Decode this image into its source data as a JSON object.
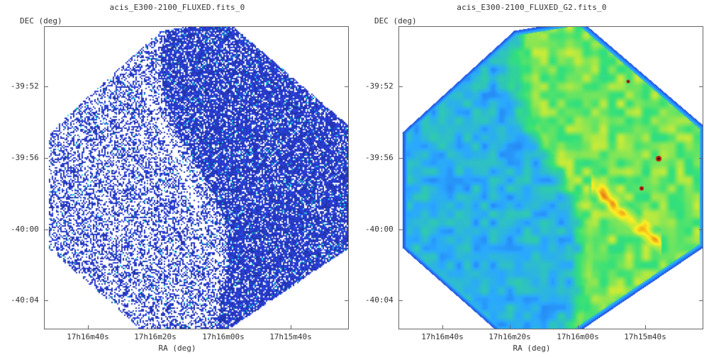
{
  "panels": [
    {
      "title": "acis_E300-2100_FLUXED.fits_0",
      "ylabel": "DEC (deg)",
      "xlabel": "RA (deg)",
      "yticks": [
        "-39:52",
        "-39:56",
        "-40:00",
        "-40:04"
      ],
      "xticks": [
        "17h16m40s",
        "17h16m20s",
        "17h16m00s",
        "17h15m40s"
      ],
      "render": "raw-counts",
      "colors": {
        "low": "#ffffff",
        "mid": "#2a3fd6",
        "high": "#1acfe0"
      }
    },
    {
      "title": "acis_E300-2100_FLUXED_G2.fits_0",
      "ylabel": "DEC (deg)",
      "xlabel": "RA (deg)",
      "yticks": [
        "-39:52",
        "-39:56",
        "-40:00",
        "-40:04"
      ],
      "xticks": [
        "17h16m40s",
        "17h16m20s",
        "17h16m00s",
        "17h15m40s"
      ],
      "render": "smoothed",
      "colors": {
        "edge": "#1a2fd6",
        "low": "#2aa8ff",
        "mid": "#33e07a",
        "high": "#ffee20",
        "peak": "#d42010"
      }
    }
  ]
}
